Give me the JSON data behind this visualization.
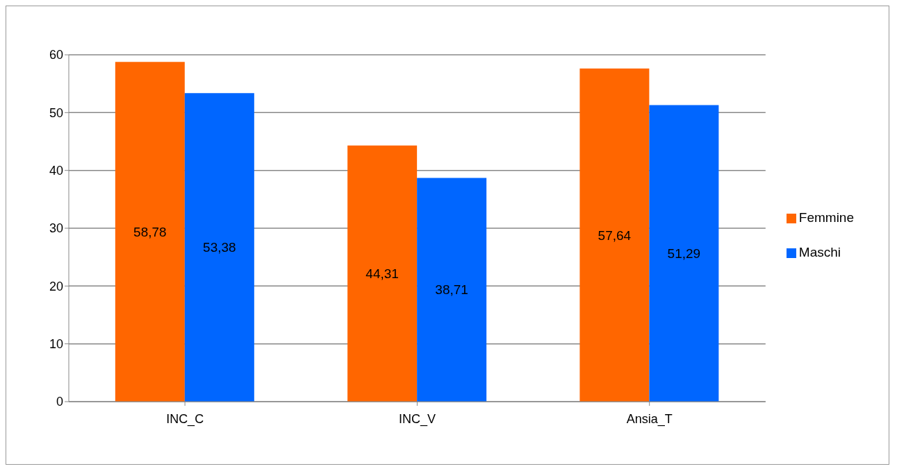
{
  "chart_data": {
    "type": "bar",
    "categories": [
      "INC_C",
      "INC_V",
      "Ansia_T"
    ],
    "series": [
      {
        "name": "Femmine",
        "color": "#ff6600",
        "values": [
          58.78,
          44.31,
          57.64
        ],
        "value_labels": [
          "58,78",
          "44,31",
          "57,64"
        ]
      },
      {
        "name": "Maschi",
        "color": "#0066ff",
        "values": [
          53.38,
          38.71,
          51.29
        ],
        "value_labels": [
          "53,38",
          "38,71",
          "51,29"
        ]
      }
    ],
    "ylim": [
      0,
      60
    ],
    "yticks": [
      0,
      10,
      20,
      30,
      40,
      50,
      60
    ],
    "grid": "y",
    "legend": "right"
  }
}
